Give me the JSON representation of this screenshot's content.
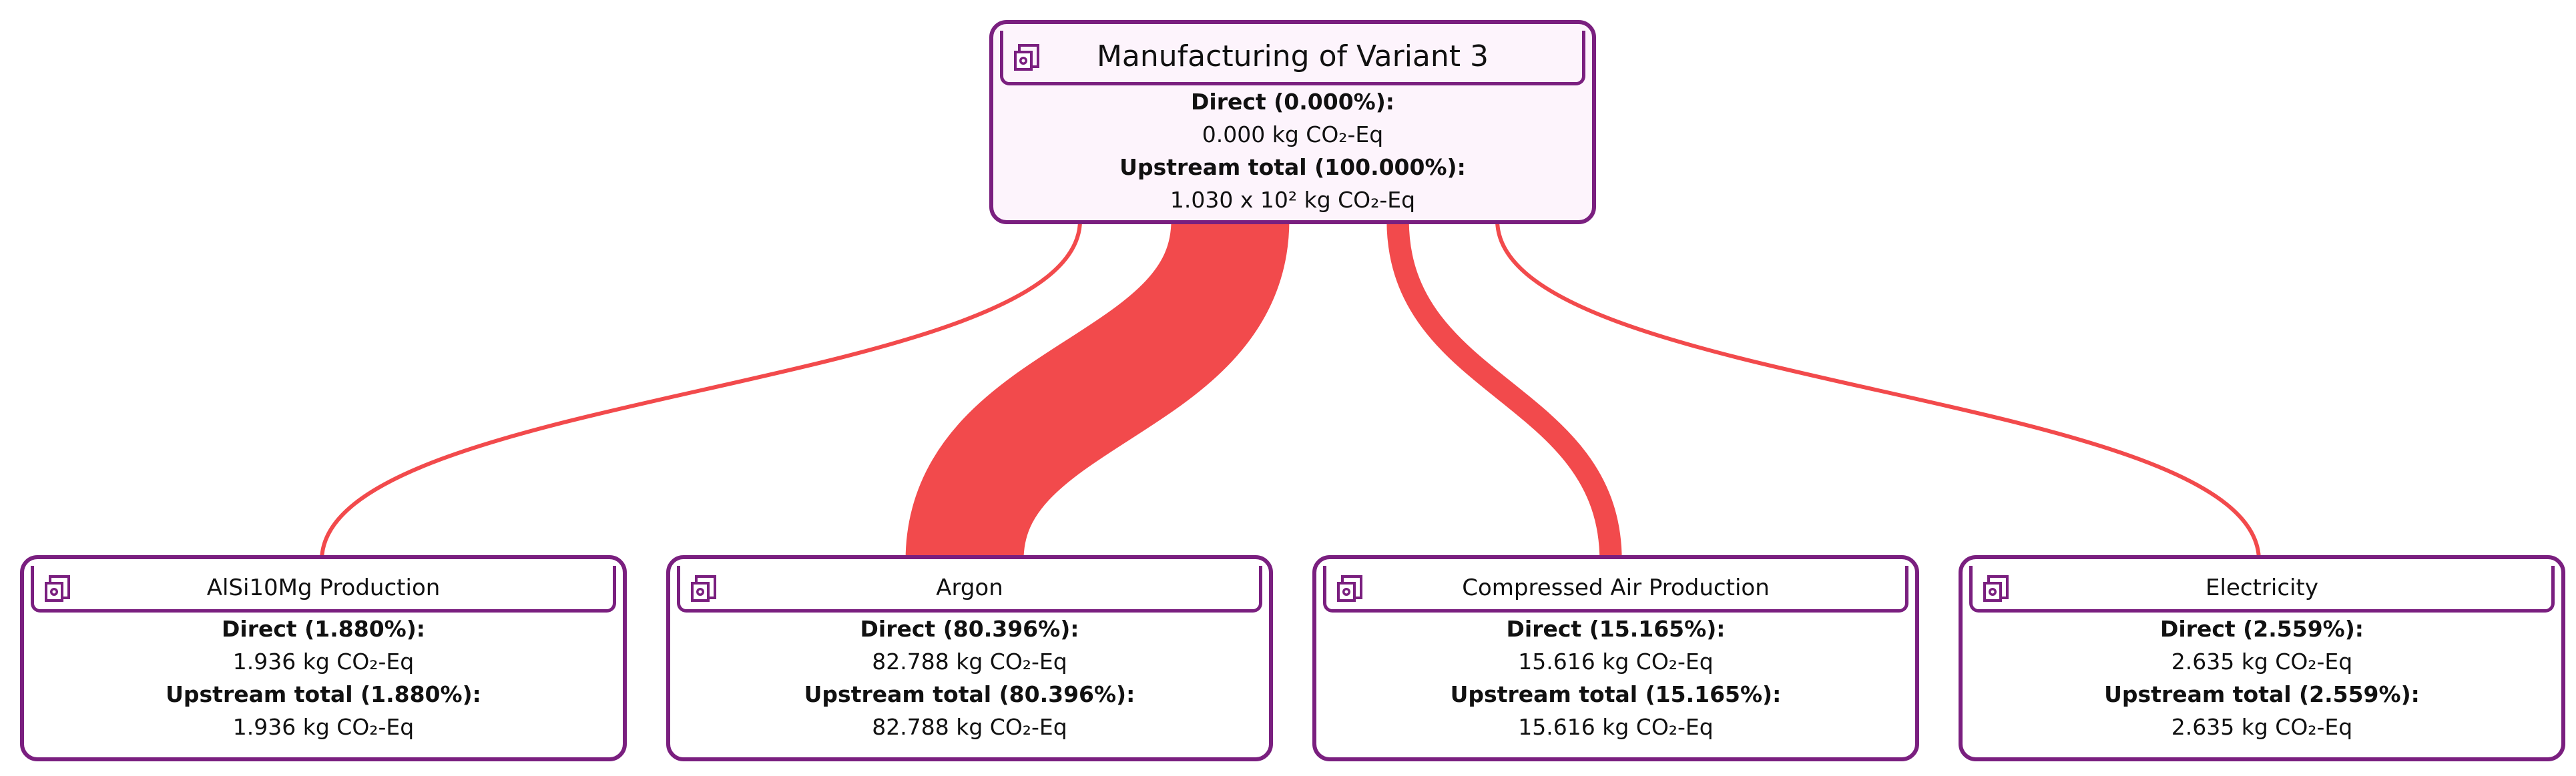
{
  "nodes": [
    {
      "title": "Manufacturing of Variant 3",
      "direct_label": "Direct (0.000%):",
      "direct_value": "0.000 kg CO₂-Eq",
      "upstream_label": "Upstream total (100.000%):",
      "upstream_value": "1.030 x 10² kg CO₂-Eq"
    },
    {
      "title": "AlSi10Mg Production",
      "direct_label": "Direct (1.880%):",
      "direct_value": "1.936 kg CO₂-Eq",
      "upstream_label": "Upstream total (1.880%):",
      "upstream_value": "1.936 kg CO₂-Eq"
    },
    {
      "title": "Argon",
      "direct_label": "Direct (80.396%):",
      "direct_value": "82.788 kg CO₂-Eq",
      "upstream_label": "Upstream total (80.396%):",
      "upstream_value": "82.788 kg CO₂-Eq"
    },
    {
      "title": "Compressed Air Production",
      "direct_label": "Direct (15.165%):",
      "direct_value": "15.616 kg CO₂-Eq",
      "upstream_label": "Upstream total (15.165%):",
      "upstream_value": "15.616 kg CO₂-Eq"
    },
    {
      "title": "Electricity",
      "direct_label": "Direct (2.559%):",
      "direct_value": "2.635 kg CO₂-Eq",
      "upstream_label": "Upstream total (2.559%):",
      "upstream_value": "2.635 kg CO₂-Eq"
    }
  ],
  "link_shares": [
    1.88,
    80.396,
    15.165,
    2.559
  ]
}
